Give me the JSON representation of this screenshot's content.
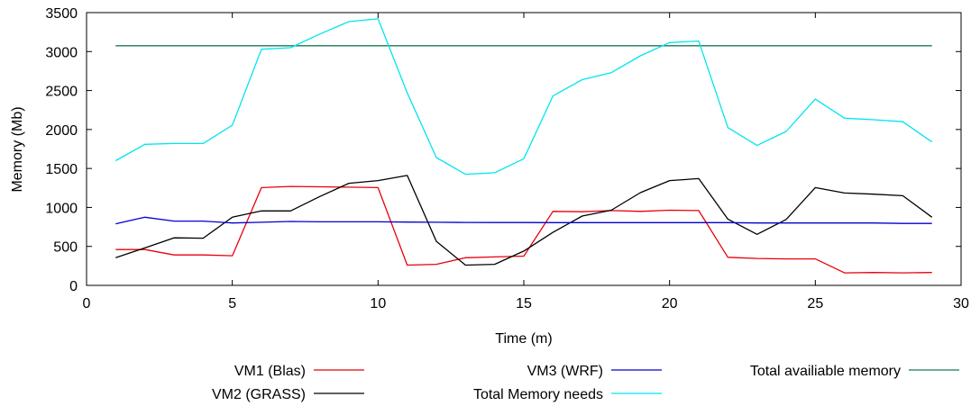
{
  "chart_data": {
    "type": "line",
    "xlabel": "Time (m)",
    "ylabel": "Memory (Mb)",
    "xlim": [
      0,
      30
    ],
    "ylim": [
      0,
      3500
    ],
    "x_ticks": [
      "0",
      "5",
      "10",
      "15",
      "20",
      "25",
      "30"
    ],
    "y_ticks": [
      "0",
      "500",
      "1000",
      "1500",
      "2000",
      "2500",
      "3000",
      "3500"
    ],
    "grid": false,
    "legend_position": "bottom",
    "x": [
      1,
      2,
      3,
      4,
      5,
      6,
      7,
      8,
      9,
      10,
      11,
      12,
      13,
      14,
      15,
      16,
      17,
      18,
      19,
      20,
      21,
      22,
      23,
      24,
      25,
      26,
      27,
      28,
      29
    ],
    "series": [
      {
        "name": "VM1 (Blas)",
        "color": "#e8000b",
        "values": [
          460,
          460,
          390,
          390,
          380,
          1255,
          1270,
          1265,
          1260,
          1255,
          260,
          270,
          355,
          365,
          375,
          950,
          945,
          960,
          950,
          965,
          960,
          360,
          345,
          340,
          340,
          160,
          165,
          160,
          165
        ]
      },
      {
        "name": "VM2 (GRASS)",
        "color": "#000000",
        "values": [
          355,
          480,
          610,
          605,
          875,
          955,
          955,
          1140,
          1310,
          1345,
          1410,
          565,
          260,
          270,
          440,
          680,
          890,
          965,
          1190,
          1345,
          1370,
          850,
          655,
          845,
          1255,
          1185,
          1170,
          1150,
          875
        ]
      },
      {
        "name": "VM3 (WRF)",
        "color": "#0000d0",
        "values": [
          790,
          875,
          825,
          825,
          800,
          810,
          820,
          815,
          815,
          815,
          812,
          810,
          808,
          806,
          806,
          805,
          805,
          805,
          805,
          805,
          805,
          805,
          800,
          800,
          800,
          800,
          800,
          795,
          795
        ]
      },
      {
        "name": "Total Memory needs",
        "color": "#00e5ee",
        "values": [
          1600,
          1810,
          1820,
          1820,
          2055,
          3030,
          3050,
          3225,
          3385,
          3420,
          2470,
          1640,
          1425,
          1445,
          1625,
          2430,
          2640,
          2730,
          2945,
          3115,
          3135,
          2025,
          1795,
          1975,
          2390,
          2145,
          2125,
          2100,
          1840
        ]
      },
      {
        "name": "Total availiable memory",
        "color": "#1a7a50",
        "values": [
          3075,
          3075,
          3075,
          3075,
          3075,
          3075,
          3075,
          3075,
          3075,
          3075,
          3075,
          3075,
          3075,
          3075,
          3075,
          3075,
          3075,
          3075,
          3075,
          3075,
          3075,
          3075,
          3075,
          3075,
          3075,
          3075,
          3075,
          3075,
          3075
        ]
      }
    ]
  }
}
